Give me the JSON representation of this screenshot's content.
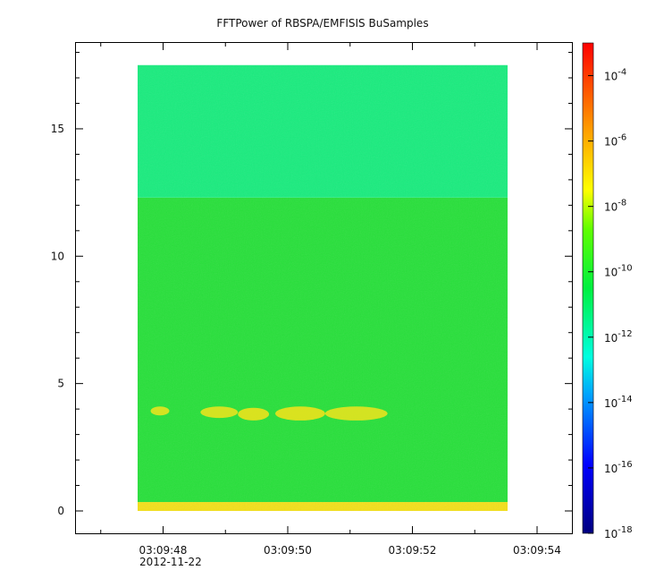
{
  "chart_data": {
    "type": "heatmap",
    "title": "FFTPower of RBSPA/EMFISIS  BuSamples",
    "xlabel": "",
    "ylabel": "",
    "x_range_seconds": [
      "03:09:47.0",
      "03:09:54.5"
    ],
    "data_x_range": [
      "03:09:47.5",
      "03:09:53.5"
    ],
    "data_y_range": [
      0,
      17.5
    ],
    "ylim": [
      -0.9,
      18.5
    ],
    "x_tick_labels": [
      "03:09:48",
      "03:09:50",
      "03:09:52",
      "03:09:54"
    ],
    "x_tick_values": [
      48,
      50,
      52,
      54
    ],
    "x_minor_tick_values": [
      47,
      49,
      51,
      53
    ],
    "x_date_label": "2012-11-22",
    "y_tick_labels": [
      "0",
      "5",
      "10",
      "15"
    ],
    "y_tick_values": [
      0,
      5,
      10,
      15
    ],
    "colorbar": {
      "scale": "log",
      "range": [
        1e-18,
        0.001
      ],
      "tick_values": [
        -18,
        -16,
        -14,
        -12,
        -10,
        -8,
        -6,
        -4
      ],
      "tick_base": "10",
      "tick_exponents": [
        "-18",
        "-16",
        "-14",
        "-12",
        "-10",
        "-8",
        "-6",
        "-4"
      ]
    },
    "bands": [
      {
        "y_from": 0,
        "y_to": 0.35,
        "color": "#f4e01a"
      },
      {
        "y_from": 0.35,
        "y_to": 12.3,
        "color": "#27e03a"
      },
      {
        "y_from": 12.3,
        "y_to": 17.5,
        "color": "#19ec7e"
      }
    ],
    "features": [
      {
        "t_from": 47.8,
        "t_to": 48.1,
        "y_from": 3.75,
        "y_to": 4.1,
        "color": "#e2e320"
      },
      {
        "t_from": 48.6,
        "t_to": 49.2,
        "y_from": 3.65,
        "y_to": 4.1,
        "color": "#e2e320"
      },
      {
        "t_from": 49.2,
        "t_to": 49.7,
        "y_from": 3.55,
        "y_to": 4.05,
        "color": "#e8e21c"
      },
      {
        "t_from": 49.8,
        "t_to": 50.6,
        "y_from": 3.55,
        "y_to": 4.1,
        "color": "#e8e21c"
      },
      {
        "t_from": 50.6,
        "t_to": 51.6,
        "y_from": 3.55,
        "y_to": 4.1,
        "color": "#e2e320"
      }
    ]
  },
  "colors": {
    "axis": "#000000",
    "background": "#ffffff"
  }
}
